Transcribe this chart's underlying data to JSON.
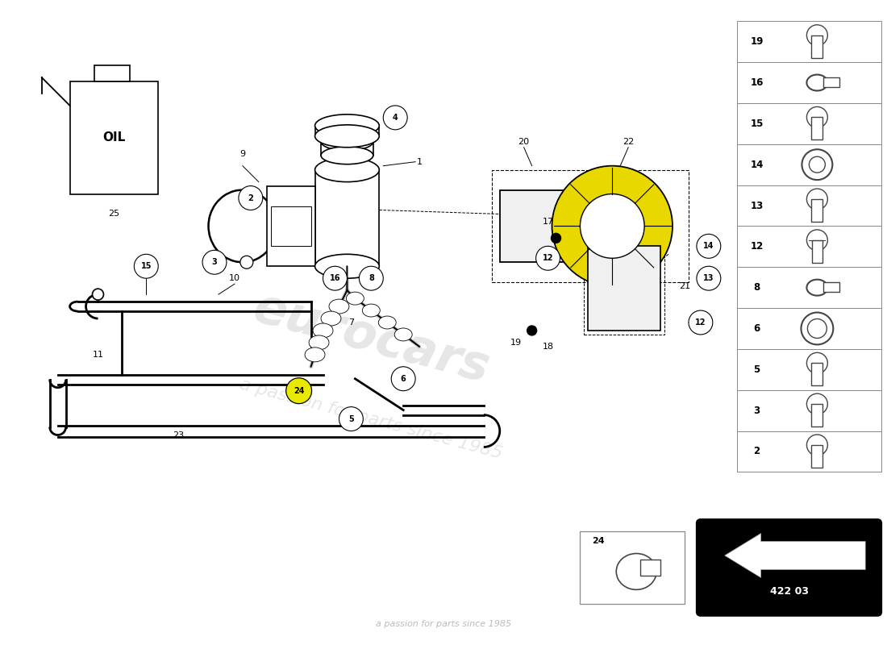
{
  "background_color": "#ffffff",
  "diagram_code": "422 03",
  "sidebar_items": [
    19,
    16,
    15,
    14,
    13,
    12,
    8,
    6,
    5,
    3,
    2
  ],
  "watermark1": "eurocars",
  "watermark2": "a passion for parts since 1985"
}
